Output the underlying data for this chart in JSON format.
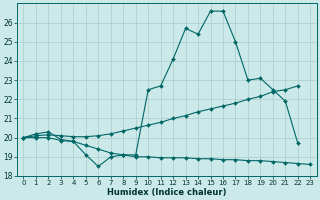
{
  "xlabel": "Humidex (Indice chaleur)",
  "background_color": "#cce9e9",
  "grid_color": "#aacccc",
  "line_color": "#006666",
  "ylim": [
    18,
    27
  ],
  "xlim": [
    -0.5,
    23.5
  ],
  "yticks": [
    18,
    19,
    20,
    21,
    22,
    23,
    24,
    25,
    26
  ],
  "xticks": [
    0,
    1,
    2,
    3,
    4,
    5,
    6,
    7,
    8,
    9,
    10,
    11,
    12,
    13,
    14,
    15,
    16,
    17,
    18,
    19,
    20,
    21,
    22,
    23
  ],
  "xtick_labels": [
    "0",
    "1",
    "2",
    "3",
    "4",
    "5",
    "6",
    "7",
    "8",
    "9",
    "10",
    "11",
    "12",
    "13",
    "14",
    "15",
    "16",
    "17",
    "18",
    "19",
    "20",
    "21",
    "22",
    "23"
  ],
  "line1_x": [
    0,
    1,
    2,
    3,
    4,
    5,
    6,
    7,
    8,
    9,
    10,
    11,
    12,
    13,
    14,
    15,
    16,
    17,
    18,
    19,
    20,
    21,
    22
  ],
  "line1_y": [
    20.0,
    20.2,
    20.3,
    19.9,
    19.8,
    19.1,
    18.5,
    19.0,
    19.1,
    19.1,
    22.5,
    22.7,
    24.1,
    25.7,
    25.4,
    26.6,
    26.6,
    25.0,
    23.0,
    23.1,
    22.5,
    21.9,
    19.7
  ],
  "line2_x": [
    0,
    1,
    2,
    3,
    4,
    5,
    6,
    7,
    8,
    9,
    10,
    11,
    12,
    13,
    14,
    15,
    16,
    17,
    18,
    19,
    20,
    21,
    22
  ],
  "line2_y": [
    20.0,
    20.1,
    20.15,
    20.1,
    20.05,
    20.05,
    20.1,
    20.2,
    20.35,
    20.5,
    20.65,
    20.8,
    21.0,
    21.15,
    21.35,
    21.5,
    21.65,
    21.8,
    22.0,
    22.15,
    22.4,
    22.5,
    22.7
  ],
  "line3_x": [
    0,
    1,
    2,
    3,
    4,
    5,
    6,
    7,
    8,
    9,
    10,
    11,
    12,
    13,
    14,
    15,
    16,
    17,
    18,
    19,
    20,
    21,
    22,
    23
  ],
  "line3_y": [
    20.0,
    20.0,
    20.0,
    19.85,
    19.8,
    19.6,
    19.4,
    19.2,
    19.1,
    19.0,
    19.0,
    18.95,
    18.95,
    18.95,
    18.9,
    18.9,
    18.85,
    18.85,
    18.8,
    18.8,
    18.75,
    18.7,
    18.65,
    18.6
  ]
}
